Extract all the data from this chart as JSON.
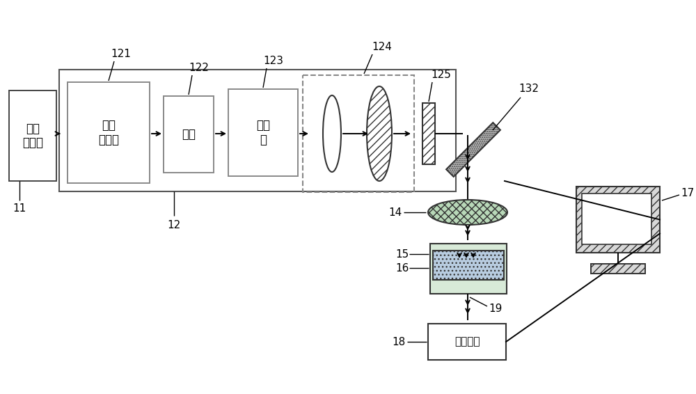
{
  "bg_color": "#ffffff",
  "lc": "#000000",
  "text_11": "飞秒\n激光器",
  "text_121": "再生\n放大器",
  "text_122": "快门",
  "text_123": "衰减\n器",
  "text_18": "监控装置",
  "lbl_11": "11",
  "lbl_12": "12",
  "lbl_121": "121",
  "lbl_122": "122",
  "lbl_123": "123",
  "lbl_124": "124",
  "lbl_125": "125",
  "lbl_132": "132",
  "lbl_14": "14",
  "lbl_15": "15",
  "lbl_16": "16",
  "lbl_17": "17",
  "lbl_18": "18",
  "lbl_19": "19"
}
